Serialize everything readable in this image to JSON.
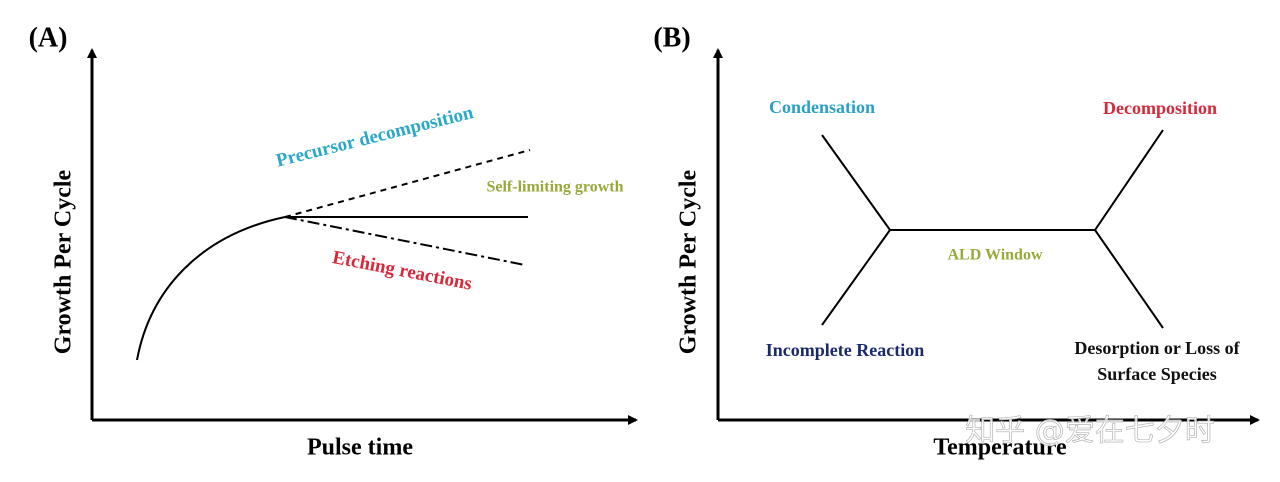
{
  "panels": [
    {
      "tag": "(A)",
      "y_label": "Growth Per Cycle",
      "x_label": "Pulse time",
      "annotations": [
        "Precursor decomposition",
        "Self-limiting growth",
        "Etching reactions"
      ]
    },
    {
      "tag": "(B)",
      "y_label": "Growth Per Cycle",
      "x_label": "Temperature",
      "annotations": [
        "Condensation",
        "Decomposition",
        "ALD Window",
        "Incomplete Reaction",
        "Desorption or Loss of",
        "Surface Species"
      ]
    }
  ],
  "watermark": "知乎 @爱在七夕时"
}
